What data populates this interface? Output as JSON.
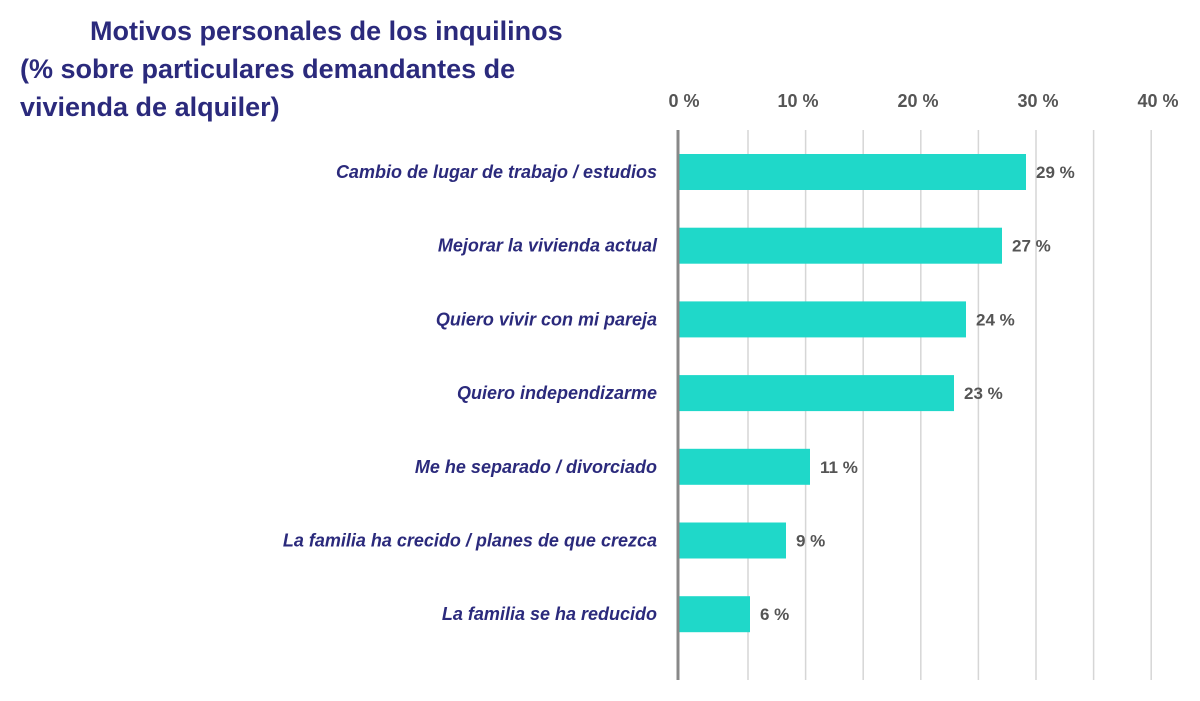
{
  "chart_data": {
    "type": "bar",
    "orientation": "horizontal",
    "title": "Motivos personales de los inquilinos",
    "subtitle": "(% sobre particulares demandantes de vivienda de alquiler)",
    "categories": [
      "Cambio de lugar de trabajo / estudios",
      "Mejorar la vivienda actual",
      "Quiero vivir con mi pareja",
      "Quiero independizarme",
      "Me he separado / divorciado",
      "La familia ha crecido / planes de que crezca",
      "La familia se ha reducido"
    ],
    "values": [
      29,
      27,
      24,
      23,
      11,
      9,
      6
    ],
    "value_labels": [
      "29 %",
      "27 %",
      "24 %",
      "23 %",
      "11 %",
      "9 %",
      "6 %"
    ],
    "xticks": [
      "0 %",
      "10 %",
      "20 %",
      "30 %",
      "40 %"
    ],
    "xtick_values": [
      0,
      10,
      20,
      30,
      40
    ],
    "xlim": [
      0,
      40
    ],
    "grid": true,
    "bar_color": "#1fd8c9",
    "label_color": "#2b2a7c"
  }
}
